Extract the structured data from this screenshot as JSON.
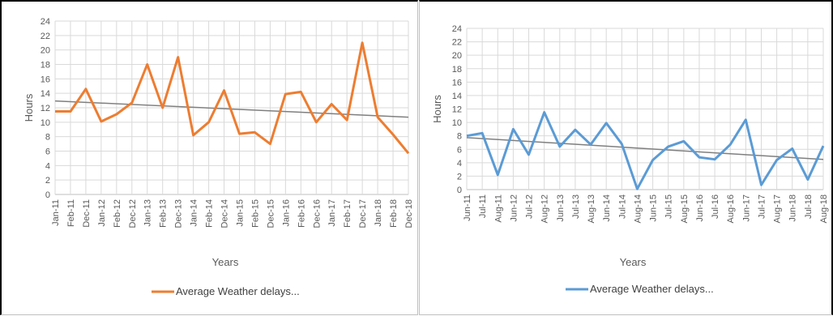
{
  "chart_data": [
    {
      "type": "line",
      "title": "",
      "xlabel": "Years",
      "ylabel": "Hours",
      "ylim": [
        0,
        24
      ],
      "ytick_step": 2,
      "grid": true,
      "trendline": true,
      "legend_position": "bottom",
      "categories": [
        "Jan-11",
        "Feb-11",
        "Dec-11",
        "Jan-12",
        "Feb-12",
        "Dec-12",
        "Jan-13",
        "Feb-13",
        "Dec-13",
        "Jan-14",
        "Feb-14",
        "Dec-14",
        "Jan-15",
        "Feb-15",
        "Dec-15",
        "Jan-16",
        "Feb-16",
        "Dec-16",
        "Jan-17",
        "Feb-17",
        "Dec-17",
        "Jan-18",
        "Feb-18",
        "Dec-18"
      ],
      "series": [
        {
          "name": "Average Weather delays...",
          "color": "#ed7d31",
          "values": [
            11.5,
            11.5,
            14.6,
            10.1,
            11.1,
            12.7,
            18,
            12,
            19,
            8.2,
            10,
            14.4,
            8.4,
            8.6,
            7,
            13.9,
            14.2,
            10,
            12.5,
            10.3,
            21,
            10.7,
            8.3,
            5.7
          ]
        }
      ],
      "trend_color": "#7f7f7f"
    },
    {
      "type": "line",
      "title": "",
      "xlabel": "Years",
      "ylabel": "Hours",
      "ylim": [
        0,
        24
      ],
      "ytick_step": 2,
      "grid": true,
      "trendline": true,
      "legend_position": "bottom",
      "categories": [
        "Jun-11",
        "Jul-11",
        "Aug-11",
        "Jun-12",
        "Jul-12",
        "Aug-12",
        "Jun-13",
        "Jul-13",
        "Aug-13",
        "Jun-14",
        "Jul-14",
        "Aug-14",
        "Jun-15",
        "Jul-15",
        "Aug-15",
        "Jun-16",
        "Jul-16",
        "Aug-16",
        "Jun-17",
        "Jul-17",
        "Aug-17",
        "Jun-18",
        "Jul-18",
        "Aug-18"
      ],
      "series": [
        {
          "name": "Average Weather delays...",
          "color": "#5b9bd5",
          "values": [
            8,
            8.4,
            2.2,
            9,
            5.2,
            11.5,
            6.4,
            8.9,
            6.7,
            9.9,
            6.8,
            0.1,
            4.4,
            6.4,
            7.2,
            4.8,
            4.5,
            6.7,
            10.4,
            0.7,
            4.4,
            6.1,
            1.5,
            6.5
          ]
        }
      ],
      "trend_color": "#7f7f7f"
    }
  ]
}
